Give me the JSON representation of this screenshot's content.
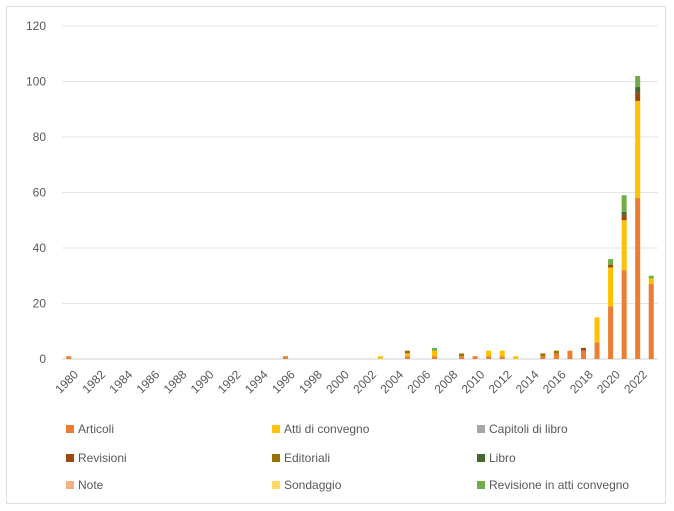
{
  "chart_data": {
    "type": "bar",
    "stacked": true,
    "title": "",
    "xlabel": "",
    "ylabel": "",
    "ylim": [
      0,
      120
    ],
    "yticks": [
      0,
      20,
      40,
      60,
      80,
      100,
      120
    ],
    "grid": true,
    "legend_position": "bottom",
    "categories": [
      "1980",
      "1981",
      "1982",
      "1983",
      "1984",
      "1985",
      "1986",
      "1987",
      "1988",
      "1989",
      "1990",
      "1991",
      "1992",
      "1993",
      "1994",
      "1995",
      "1996",
      "1997",
      "1998",
      "1999",
      "2000",
      "2001",
      "2002",
      "2003",
      "2004",
      "2005",
      "2006",
      "2007",
      "2008",
      "2009",
      "2010",
      "2011",
      "2012",
      "2013",
      "2014",
      "2015",
      "2016",
      "2017",
      "2018",
      "2019",
      "2020",
      "2021",
      "2022",
      "2023"
    ],
    "tick_labels": [
      "1980",
      "1982",
      "1984",
      "1986",
      "1988",
      "1990",
      "1992",
      "1994",
      "1996",
      "1998",
      "2000",
      "2002",
      "2004",
      "2006",
      "2008",
      "2010",
      "2012",
      "2014",
      "2016",
      "2018",
      "2020",
      "2022"
    ],
    "series": [
      {
        "name": "Articoli",
        "color": "#ed7d31",
        "values": [
          1,
          0,
          0,
          0,
          0,
          0,
          0,
          0,
          0,
          0,
          0,
          0,
          0,
          0,
          0,
          0,
          1,
          0,
          0,
          0,
          0,
          0,
          0,
          0,
          0,
          1,
          0,
          1,
          0,
          1,
          1,
          1,
          1,
          0,
          0,
          1,
          2,
          3,
          3,
          6,
          19,
          32,
          58,
          27
        ]
      },
      {
        "name": "Atti di convegno",
        "color": "#ffc000",
        "values": [
          0,
          0,
          0,
          0,
          0,
          0,
          0,
          0,
          0,
          0,
          0,
          0,
          0,
          0,
          0,
          0,
          0,
          0,
          0,
          0,
          0,
          0,
          0,
          1,
          0,
          1,
          0,
          2,
          0,
          0,
          0,
          2,
          2,
          1,
          0,
          0,
          0,
          0,
          0,
          9,
          14,
          18,
          35,
          2
        ]
      },
      {
        "name": "Capitoli di libro",
        "color": "#a5a5a5",
        "values": [
          0,
          0,
          0,
          0,
          0,
          0,
          0,
          0,
          0,
          0,
          0,
          0,
          0,
          0,
          0,
          0,
          0,
          0,
          0,
          0,
          0,
          0,
          0,
          0,
          0,
          0,
          0,
          0,
          0,
          0,
          0,
          0,
          0,
          0,
          0,
          0,
          0,
          0,
          0,
          0,
          0,
          0,
          0,
          0
        ]
      },
      {
        "name": "Revisioni",
        "color": "#9e480e",
        "values": [
          0,
          0,
          0,
          0,
          0,
          0,
          0,
          0,
          0,
          0,
          0,
          0,
          0,
          0,
          0,
          0,
          0,
          0,
          0,
          0,
          0,
          0,
          0,
          0,
          0,
          0,
          0,
          0,
          0,
          0,
          0,
          0,
          0,
          0,
          0,
          0,
          0,
          0,
          1,
          0,
          1,
          2,
          3,
          0
        ]
      },
      {
        "name": "Editoriali",
        "color": "#997300",
        "values": [
          0,
          0,
          0,
          0,
          0,
          0,
          0,
          0,
          0,
          0,
          0,
          0,
          0,
          0,
          0,
          0,
          0,
          0,
          0,
          0,
          0,
          0,
          0,
          0,
          0,
          1,
          0,
          0,
          0,
          1,
          0,
          0,
          0,
          0,
          0,
          1,
          1,
          0,
          0,
          0,
          0,
          0,
          0,
          0
        ]
      },
      {
        "name": "Libro",
        "color": "#43682b",
        "values": [
          0,
          0,
          0,
          0,
          0,
          0,
          0,
          0,
          0,
          0,
          0,
          0,
          0,
          0,
          0,
          0,
          0,
          0,
          0,
          0,
          0,
          0,
          0,
          0,
          0,
          0,
          0,
          0,
          0,
          0,
          0,
          0,
          0,
          0,
          0,
          0,
          0,
          0,
          0,
          0,
          0,
          1,
          2,
          0
        ]
      },
      {
        "name": "Note",
        "color": "#f4b183",
        "values": [
          0,
          0,
          0,
          0,
          0,
          0,
          0,
          0,
          0,
          0,
          0,
          0,
          0,
          0,
          0,
          0,
          0,
          0,
          0,
          0,
          0,
          0,
          0,
          0,
          0,
          0,
          0,
          0,
          0,
          0,
          0,
          0,
          0,
          0,
          0,
          0,
          0,
          0,
          0,
          0,
          0,
          0,
          0,
          0
        ]
      },
      {
        "name": "Sondaggio",
        "color": "#ffd966",
        "values": [
          0,
          0,
          0,
          0,
          0,
          0,
          0,
          0,
          0,
          0,
          0,
          0,
          0,
          0,
          0,
          0,
          0,
          0,
          0,
          0,
          0,
          0,
          0,
          0,
          0,
          0,
          0,
          0,
          0,
          0,
          0,
          0,
          0,
          0,
          0,
          0,
          0,
          0,
          0,
          0,
          0,
          0,
          0,
          0
        ]
      },
      {
        "name": "Revisione in atti convegno",
        "color": "#70ad47",
        "values": [
          0,
          0,
          0,
          0,
          0,
          0,
          0,
          0,
          0,
          0,
          0,
          0,
          0,
          0,
          0,
          0,
          0,
          0,
          0,
          0,
          0,
          0,
          0,
          0,
          0,
          0,
          0,
          1,
          0,
          0,
          0,
          0,
          0,
          0,
          0,
          0,
          0,
          0,
          0,
          0,
          2,
          6,
          4,
          1
        ]
      }
    ]
  }
}
